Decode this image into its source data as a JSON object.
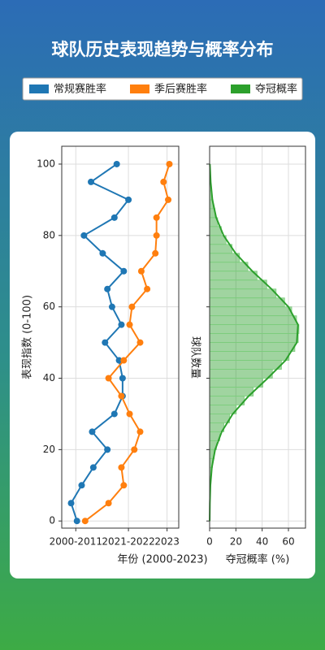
{
  "title": "球队历史表现趋势与概率分布",
  "chart_data": [
    {
      "type": "line",
      "x_label": "年份 (2000-2023)",
      "y_label": "表现指数 (0-100)",
      "y": [
        0,
        5,
        10,
        15,
        20,
        25,
        30,
        35,
        40,
        45,
        50,
        55,
        60,
        65,
        70,
        75,
        80,
        85,
        90,
        95,
        100
      ],
      "series": [
        {
          "name": "常规赛胜率",
          "color": "#1f77b4",
          "values": [
            13,
            8,
            17,
            27,
            39,
            26,
            45,
            52,
            52,
            49,
            37,
            51,
            43,
            39,
            53,
            35,
            19,
            45,
            57,
            25,
            47
          ]
        },
        {
          "name": "季后赛胜率",
          "color": "#ff7f0e",
          "values": [
            20,
            40,
            53,
            51,
            62,
            67,
            58,
            51,
            40,
            53,
            67,
            58,
            60,
            73,
            68,
            80,
            81,
            81,
            91,
            87,
            92
          ]
        }
      ],
      "xlim": [
        0,
        100
      ],
      "xticks": [
        {
          "value": 12,
          "label": "2000-2011"
        },
        {
          "value": 57,
          "label": "2021-2022"
        },
        {
          "value": 90,
          "label": "2023"
        }
      ],
      "ylim": [
        -2,
        105
      ],
      "yticks": [
        0,
        20,
        40,
        60,
        80,
        100
      ],
      "grid": true
    },
    {
      "type": "histogram",
      "orientation": "horizontal",
      "x_label": "夺冠概率 (%)",
      "y_label": "球队数量",
      "name": "夺冠概率",
      "color": "#2ca02c",
      "bins": [
        0,
        2.5,
        5,
        7.5,
        10,
        12.5,
        15,
        17.5,
        20,
        22.5,
        25,
        27.5,
        30,
        32.5,
        35,
        37.5,
        40,
        42.5,
        45,
        47.5,
        50,
        52.5,
        55,
        57.5,
        60,
        62.5,
        65,
        67.5,
        70,
        72.5,
        75,
        77.5,
        80,
        82.5,
        85,
        87.5,
        90,
        92.5,
        95,
        97.5,
        100
      ],
      "values": [
        0.1,
        0.1,
        0.3,
        0.5,
        0.8,
        1.3,
        2.2,
        3.4,
        5.2,
        7.7,
        10.9,
        15.2,
        20.3,
        26.4,
        33.2,
        40.5,
        47.8,
        54.7,
        60.5,
        64.9,
        67.5,
        68,
        66.2,
        62.5,
        57.1,
        50.6,
        43.5,
        36.1,
        29.1,
        22.7,
        17.1,
        12.5,
        8.9,
        6.1,
        4.1,
        2.6,
        1.6,
        1.0,
        0.6,
        0.3
      ],
      "curve": {
        "positions": [
          0,
          5,
          10,
          15,
          20,
          25,
          30,
          35,
          40,
          45,
          50,
          55,
          60,
          65,
          70,
          75,
          80,
          85,
          90,
          95,
          100
        ],
        "values": [
          0.05,
          0.2,
          0.6,
          1.7,
          4.2,
          9.2,
          17.6,
          29.7,
          44.2,
          57.8,
          66.4,
          67.3,
          60,
          47.1,
          32.5,
          19.8,
          10.6,
          5,
          2.1,
          0.8,
          0.2
        ]
      },
      "xlim": [
        0,
        73
      ],
      "xticks": [
        0,
        20,
        40,
        60
      ],
      "ylim": [
        -2,
        105
      ],
      "yticks": [
        0,
        20,
        40,
        60,
        80,
        100
      ],
      "grid": true
    }
  ]
}
